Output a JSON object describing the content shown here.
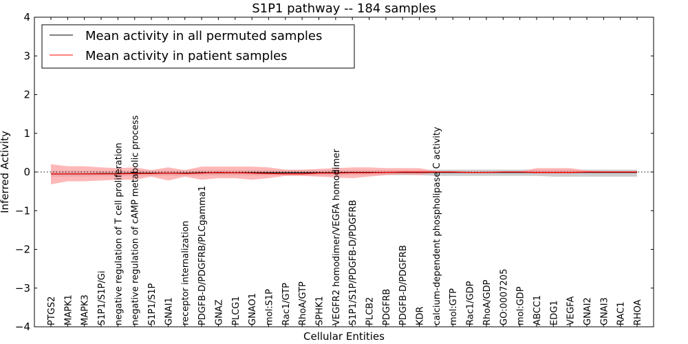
{
  "chart_data": {
    "type": "line",
    "title": "S1P1 pathway -- 184 samples",
    "xlabel": "Cellular Entities",
    "ylabel": "Inferred Activity",
    "ylim": [
      -4,
      4
    ],
    "yticks": [
      -4,
      -3,
      -2,
      -1,
      0,
      1,
      2,
      3,
      4
    ],
    "ytick_labels": [
      "−4",
      "−3",
      "−2",
      "−1",
      "0",
      "1",
      "2",
      "3",
      "4"
    ],
    "grid": false,
    "legend_position": "top-left",
    "baseline": 0,
    "categories": [
      "PTGS2",
      "MAPK1",
      "MAPK3",
      "S1P1/S1P/Gi",
      "negative regulation of T cell proliferation",
      "negative regulation of cAMP metabolic process",
      "S1P1/S1P",
      "GNAI1",
      "receptor internalization",
      "PDGFB-D/PDGFRB/PLCgamma1",
      "GNAZ",
      "PLCG1",
      "GNAO1",
      "mol:S1P",
      "Rac1/GTP",
      "RhoA/GTP",
      "SPHK1",
      "VEGFR2 homodimer/VEGFA homodimer",
      "S1P1/S1P/PDGFB-D/PDGFRB",
      "PLCB2",
      "PDGFRB",
      "PDGFB-D/PDGFRB",
      "KDR",
      "calcium-dependent phospholipase C activity",
      "mol:GTP",
      "Rac1/GDP",
      "RhoA/GDP",
      "GO:0007205",
      "mol:GDP",
      "ABCC1",
      "EDG1",
      "VEGFA",
      "GNAI2",
      "GNAI3",
      "RAC1",
      "RHOA"
    ],
    "series": [
      {
        "name": "Mean activity in all permuted samples",
        "color": "#000000",
        "values": [
          -0.05,
          -0.05,
          -0.05,
          -0.04,
          -0.04,
          -0.03,
          -0.03,
          -0.03,
          -0.03,
          -0.02,
          -0.02,
          -0.02,
          -0.02,
          -0.02,
          -0.02,
          -0.02,
          -0.02,
          -0.02,
          -0.01,
          -0.01,
          -0.01,
          -0.01,
          -0.01,
          -0.01,
          -0.01,
          -0.01,
          -0.01,
          -0.01,
          -0.01,
          -0.01,
          -0.01,
          -0.01,
          -0.01,
          -0.01,
          -0.01,
          -0.01
        ],
        "band_lower": [
          -0.12,
          -0.12,
          -0.12,
          -0.11,
          -0.11,
          -0.1,
          -0.1,
          -0.1,
          -0.1,
          -0.09,
          -0.09,
          -0.09,
          -0.09,
          -0.09,
          -0.09,
          -0.09,
          -0.09,
          -0.09,
          -0.08,
          -0.08,
          -0.08,
          -0.08,
          -0.08,
          -0.1,
          -0.1,
          -0.1,
          -0.1,
          -0.1,
          -0.1,
          -0.1,
          -0.12,
          -0.12,
          -0.12,
          -0.12,
          -0.12,
          -0.12
        ],
        "band_upper": [
          0.03,
          0.03,
          0.03,
          0.03,
          0.03,
          0.04,
          0.04,
          0.04,
          0.04,
          0.05,
          0.05,
          0.05,
          0.05,
          0.05,
          0.05,
          0.05,
          0.05,
          0.05,
          0.05,
          0.05,
          0.05,
          0.05,
          0.05,
          0.06,
          0.06,
          0.06,
          0.06,
          0.06,
          0.06,
          0.06,
          0.06,
          0.06,
          0.06,
          0.06,
          0.06,
          0.06
        ],
        "band_color": "#bbbbbb"
      },
      {
        "name": "Mean activity in patient samples",
        "color": "#ff0000",
        "values": [
          -0.05,
          -0.05,
          -0.05,
          -0.05,
          -0.05,
          -0.04,
          -0.04,
          -0.03,
          -0.04,
          -0.03,
          -0.01,
          -0.02,
          -0.03,
          -0.04,
          -0.05,
          -0.05,
          -0.03,
          -0.03,
          -0.02,
          -0.02,
          -0.01,
          0,
          0,
          0,
          0,
          -0.01,
          -0.01,
          0,
          0,
          -0.01,
          -0.01,
          -0.01,
          0,
          0,
          0,
          0
        ],
        "band_lower": [
          -0.32,
          -0.24,
          -0.24,
          -0.22,
          -0.2,
          -0.2,
          -0.12,
          -0.22,
          -0.12,
          -0.2,
          -0.16,
          -0.16,
          -0.2,
          -0.16,
          -0.1,
          -0.1,
          -0.12,
          -0.14,
          -0.16,
          -0.12,
          -0.08,
          -0.06,
          -0.08,
          -0.02,
          -0.02,
          -0.02,
          -0.02,
          -0.01,
          -0.01,
          -0.04,
          -0.04,
          -0.04,
          -0.02,
          -0.01,
          -0.01,
          -0.01
        ],
        "band_upper": [
          0.2,
          0.15,
          0.15,
          0.12,
          0.1,
          0.12,
          0.05,
          0.12,
          0.05,
          0.14,
          0.14,
          0.14,
          0.14,
          0.12,
          0.06,
          0.06,
          0.08,
          0.1,
          0.12,
          0.12,
          0.1,
          0.1,
          0.1,
          0.02,
          0.02,
          0.01,
          0.01,
          0.01,
          0.01,
          0.1,
          0.1,
          0.1,
          0.04,
          0.02,
          0.02,
          0.02
        ],
        "band_color": "#ff9a9a"
      }
    ]
  }
}
